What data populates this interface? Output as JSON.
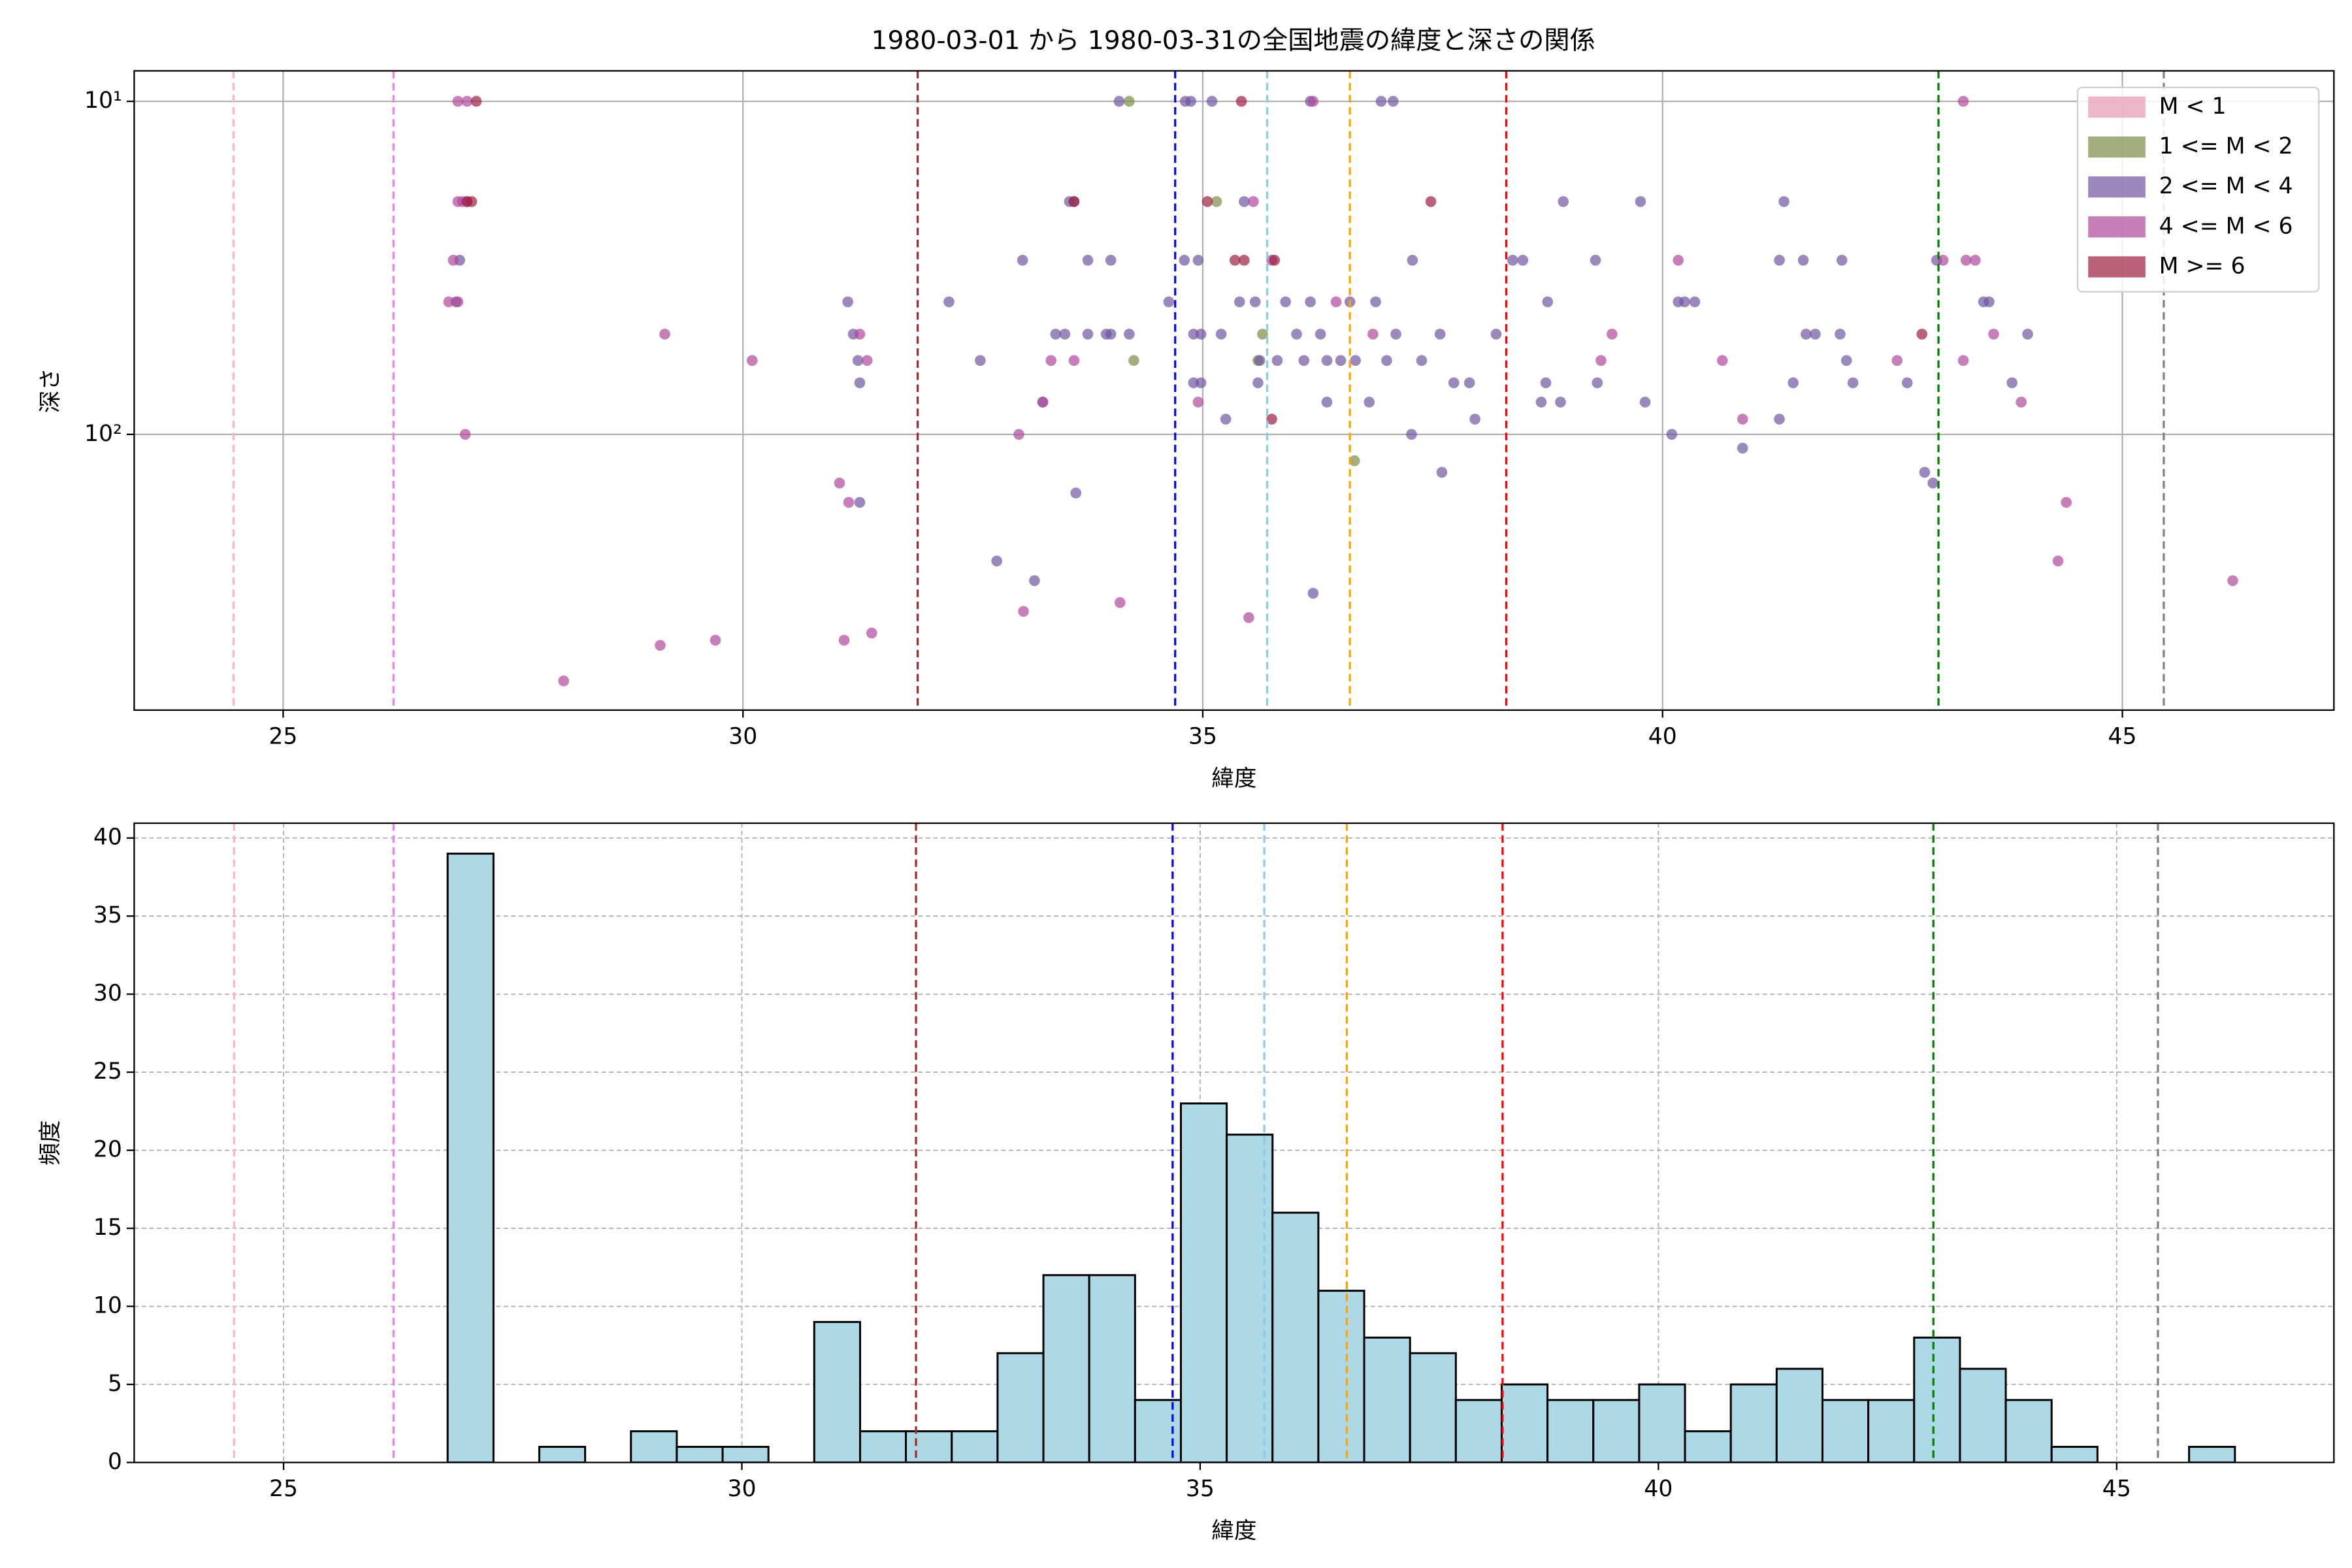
{
  "chart_data": [
    {
      "type": "scatter",
      "title": "1980-03-01 から 1980-03-31の全国地震の緯度と深さの関係",
      "xlabel": "緯度",
      "ylabel": "深さ",
      "xlim": [
        23.38,
        47.3
      ],
      "ylim": [
        673,
        8.1
      ],
      "y_scale": "log",
      "xticks": [
        25,
        30,
        35,
        40,
        45
      ],
      "yticks": [
        {
          "value": 10,
          "label": "10¹"
        },
        {
          "value": 100,
          "label": "10²"
        }
      ],
      "grid": true,
      "legend": "upper right",
      "reference_lines": [
        {
          "value": 24.46,
          "color": "#ffb6c1"
        },
        {
          "value": 26.2,
          "color": "#ee82ee"
        },
        {
          "value": 31.9,
          "color": "#a52a2a"
        },
        {
          "value": 34.7,
          "color": "#0000ff"
        },
        {
          "value": 35.7,
          "color": "#87ceeb"
        },
        {
          "value": 36.6,
          "color": "#ffa500"
        },
        {
          "value": 38.3,
          "color": "#ff0000"
        },
        {
          "value": 43.0,
          "color": "#008000"
        },
        {
          "value": 45.45,
          "color": "#808080"
        }
      ],
      "series": [
        {
          "name": "M < 1",
          "color": "#e597b2",
          "x": [],
          "values": []
        },
        {
          "name": "1 <= M < 2",
          "color": "#7a8c44",
          "x": [
            34.2,
            34.25,
            35.15,
            35.6,
            35.65,
            36.65
          ],
          "values": [
            10,
            60,
            20,
            60,
            50,
            120
          ]
        },
        {
          "name": "2 <= M < 4",
          "color": "#7055a0",
          "x": [
            34.09,
            34.81,
            34.87,
            35.1,
            36.17,
            36.94,
            37.07,
            26.92,
            26.88,
            31.14,
            31.2,
            31.25,
            31.27,
            31.27,
            32.24,
            32.58,
            32.76,
            33.04,
            33.17,
            33.26,
            33.4,
            33.5,
            33.55,
            33.6,
            33.62,
            33.75,
            33.75,
            33.95,
            34.0,
            34.0,
            34.2,
            34.63,
            34.8,
            34.9,
            34.98,
            34.95,
            34.98,
            34.9,
            35.2,
            35.25,
            35.4,
            35.45,
            35.57,
            35.6,
            35.62,
            35.81,
            35.9,
            36.02,
            36.1,
            36.17,
            36.2,
            36.35,
            36.28,
            36.35,
            36.5,
            36.6,
            36.66,
            36.81,
            36.88,
            37.0,
            37.1,
            37.27,
            37.28,
            37.38,
            37.6,
            37.58,
            37.73,
            37.9,
            37.96,
            38.19,
            38.37,
            38.48,
            38.68,
            38.73,
            38.75,
            38.89,
            38.92,
            39.27,
            39.29,
            39.76,
            39.81,
            40.1,
            40.17,
            40.24,
            40.35,
            40.87,
            41.27,
            41.27,
            41.32,
            41.42,
            41.53,
            41.56,
            41.66,
            41.95,
            41.93,
            42.0,
            42.07,
            42.66,
            42.85,
            42.94,
            42.98,
            43.49,
            43.55,
            43.8,
            43.97
          ],
          "values": [
            10,
            10,
            10,
            10,
            10,
            10,
            10,
            30,
            40,
            40,
            50,
            60,
            70,
            160,
            40,
            60,
            240,
            30,
            275,
            80,
            50,
            50,
            20,
            20,
            150,
            30,
            50,
            50,
            50,
            30,
            50,
            40,
            30,
            70,
            70,
            30,
            50,
            50,
            50,
            90,
            40,
            20,
            40,
            70,
            60,
            60,
            40,
            50,
            60,
            40,
            300,
            80,
            50,
            60,
            60,
            40,
            60,
            80,
            40,
            60,
            50,
            100,
            30,
            60,
            130,
            50,
            70,
            70,
            90,
            50,
            30,
            30,
            80,
            70,
            40,
            80,
            20,
            30,
            70,
            20,
            80,
            100,
            40,
            40,
            40,
            110,
            90,
            30,
            20,
            70,
            30,
            50,
            50,
            30,
            50,
            60,
            70,
            70,
            130,
            140,
            30,
            40,
            40,
            70,
            50
          ]
        },
        {
          "name": "4 <= M < 6",
          "color": "#b0479a",
          "x": [
            26.8,
            26.9,
            26.85,
            26.9,
            26.95,
            27.0,
            26.9,
            27.0,
            26.98,
            28.05,
            29.1,
            29.15,
            29.7,
            30.1,
            31.1,
            31.05,
            31.15,
            31.27,
            31.35,
            31.4,
            33.0,
            33.05,
            33.26,
            33.35,
            33.6,
            34.1,
            34.95,
            35.55,
            35.5,
            35.75,
            36.2,
            36.45,
            36.85,
            39.45,
            39.33,
            40.17,
            40.65,
            40.87,
            42.55,
            43.05,
            43.27,
            43.3,
            43.4,
            43.27,
            43.6,
            43.9,
            44.3,
            44.39,
            46.2
          ],
          "values": [
            40,
            40,
            30,
            20,
            20,
            20,
            10,
            10,
            100,
            550,
            430,
            50,
            415,
            60,
            415,
            140,
            160,
            50,
            60,
            395,
            100,
            340,
            80,
            60,
            60,
            320,
            80,
            20,
            355,
            30,
            10,
            40,
            50,
            50,
            60,
            30,
            60,
            90,
            60,
            30,
            10,
            30,
            30,
            60,
            50,
            80,
            240,
            160,
            275
          ]
        },
        {
          "name": "M >= 6",
          "color": "#9e1f42",
          "x": [
            27.0,
            27.05,
            27.1,
            33.6,
            35.05,
            35.35,
            35.45,
            35.78,
            35.75,
            37.48,
            42.82,
            35.42
          ],
          "values": [
            20,
            20,
            10,
            20,
            20,
            30,
            30,
            30,
            90,
            20,
            50,
            10
          ]
        }
      ]
    },
    {
      "type": "histogram",
      "xlabel": "緯度",
      "ylabel": "頻度",
      "xlim": [
        23.37,
        47.37
      ],
      "ylim": [
        0,
        40.95
      ],
      "xticks": [
        25,
        30,
        35,
        40,
        45
      ],
      "yticks": [
        0,
        5,
        10,
        15,
        20,
        25,
        30,
        35,
        40
      ],
      "grid": true,
      "color": "#add8e6",
      "edgecolor": "#000000",
      "reference_lines": [
        {
          "value": 24.46,
          "color": "#ffb6c1"
        },
        {
          "value": 26.2,
          "color": "#ee82ee"
        },
        {
          "value": 31.9,
          "color": "#a52a2a"
        },
        {
          "value": 34.7,
          "color": "#0000ff"
        },
        {
          "value": 35.7,
          "color": "#87ceeb"
        },
        {
          "value": 36.6,
          "color": "#ffa500"
        },
        {
          "value": 38.3,
          "color": "#ff0000"
        },
        {
          "value": 43.0,
          "color": "#008000"
        },
        {
          "value": 45.45,
          "color": "#808080"
        }
      ],
      "bins": [
        26.79,
        27.29,
        27.79,
        28.29,
        28.79,
        29.29,
        29.79,
        30.29,
        30.79,
        31.29,
        31.79,
        32.29,
        32.79,
        33.29,
        33.79,
        34.29,
        34.79,
        35.29,
        35.79,
        36.29,
        36.79,
        37.29,
        37.79,
        38.29,
        38.79,
        39.29,
        39.79,
        40.29,
        40.79,
        41.29,
        41.79,
        42.29,
        42.79,
        43.29,
        43.79,
        44.29,
        44.79,
        45.29,
        45.79,
        46.29
      ],
      "values": [
        39,
        0,
        1,
        0,
        2,
        1,
        1,
        0,
        9,
        2,
        2,
        2,
        7,
        12,
        12,
        4,
        23,
        21,
        16,
        11,
        8,
        7,
        4,
        5,
        4,
        4,
        5,
        2,
        5,
        6,
        4,
        4,
        8,
        6,
        4,
        1,
        0,
        0,
        1
      ]
    }
  ]
}
